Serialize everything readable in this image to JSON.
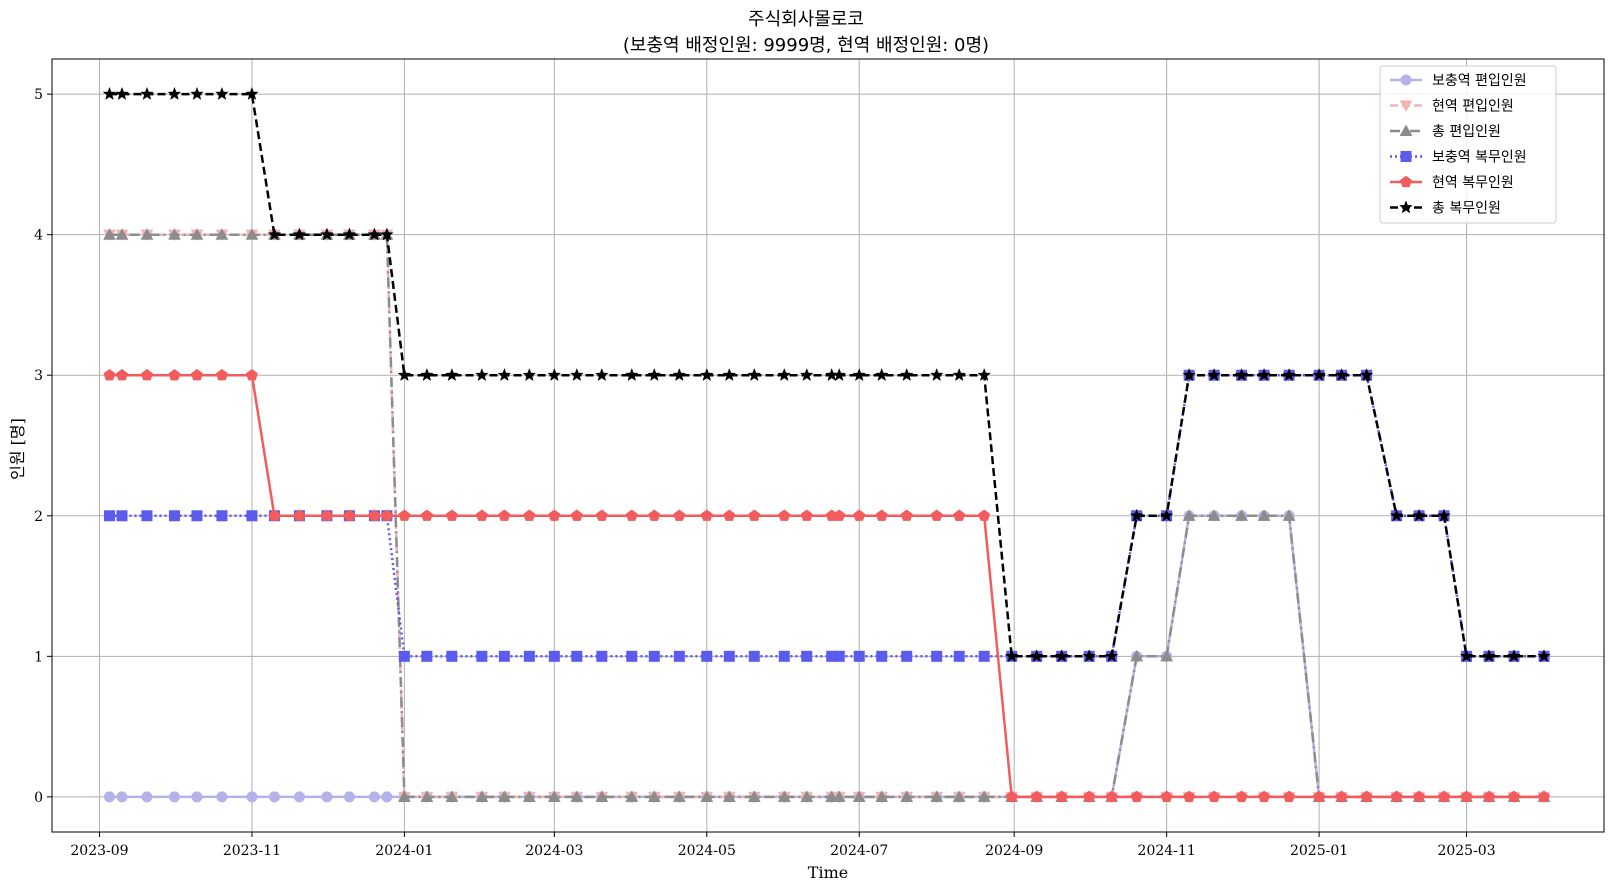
{
  "chart_data": {
    "type": "line",
    "title": "주식회사몰로코",
    "subtitle": "(보충역 배정인원: 9999명, 현역 배정인원: 0명)",
    "xlabel": "Time",
    "ylabel": "인원 [명]",
    "x_ticks": [
      "2023-09",
      "2023-11",
      "2024-01",
      "2024-03",
      "2024-05",
      "2024-07",
      "2024-09",
      "2024-11",
      "2025-01",
      "2025-03"
    ],
    "y_ticks": [
      "0",
      "1",
      "2",
      "3",
      "4",
      "5"
    ],
    "xlim": [
      "2023-08-13",
      "2025-04-25"
    ],
    "ylim": [
      -0.25,
      5.25
    ],
    "grid": true,
    "legend_position": "top-right",
    "x": [
      "2023-09-05",
      "2023-09-10",
      "2023-09-20",
      "2023-10-01",
      "2023-10-10",
      "2023-10-20",
      "2023-11-01",
      "2023-11-10",
      "2023-11-20",
      "2023-12-01",
      "2023-12-10",
      "2023-12-20",
      "2023-12-25",
      "2024-01-01",
      "2024-01-10",
      "2024-01-20",
      "2024-02-01",
      "2024-02-10",
      "2024-02-20",
      "2024-03-01",
      "2024-03-10",
      "2024-03-20",
      "2024-04-01",
      "2024-04-10",
      "2024-04-20",
      "2024-05-01",
      "2024-05-10",
      "2024-05-20",
      "2024-06-01",
      "2024-06-10",
      "2024-06-20",
      "2024-06-23",
      "2024-07-01",
      "2024-07-10",
      "2024-07-20",
      "2024-08-01",
      "2024-08-10",
      "2024-08-20",
      "2024-08-31",
      "2024-09-10",
      "2024-09-20",
      "2024-10-01",
      "2024-10-10",
      "2024-10-20",
      "2024-11-01",
      "2024-11-10",
      "2024-11-20",
      "2024-12-01",
      "2024-12-10",
      "2024-12-20",
      "2025-01-01",
      "2025-01-10",
      "2025-01-20",
      "2025-02-01",
      "2025-02-10",
      "2025-02-20",
      "2025-03-01",
      "2025-03-10",
      "2025-03-20",
      "2025-04-01"
    ],
    "series": [
      {
        "name": "보충역 편입인원",
        "color": "#b3b3ea",
        "dash": "",
        "marker": "circle",
        "values": [
          0,
          0,
          0,
          0,
          0,
          0,
          0,
          0,
          0,
          0,
          0,
          0,
          0,
          0,
          0,
          0,
          0,
          0,
          0,
          0,
          0,
          0,
          0,
          0,
          0,
          0,
          0,
          0,
          0,
          0,
          0,
          0,
          0,
          0,
          0,
          0,
          0,
          0,
          0,
          0,
          0,
          0,
          0,
          1,
          1,
          2,
          2,
          2,
          2,
          2,
          0,
          0,
          0,
          0,
          0,
          0,
          0,
          0,
          0,
          0
        ]
      },
      {
        "name": "현역 편입인원",
        "color": "#f2b3b3",
        "dash": "8,4",
        "marker": "triangle-down",
        "values": [
          4,
          4,
          4,
          4,
          4,
          4,
          4,
          4,
          4,
          4,
          4,
          4,
          4,
          0,
          0,
          0,
          0,
          0,
          0,
          0,
          0,
          0,
          0,
          0,
          0,
          0,
          0,
          0,
          0,
          0,
          0,
          0,
          0,
          0,
          0,
          0,
          0,
          0,
          0,
          0,
          0,
          0,
          0,
          0,
          0,
          0,
          0,
          0,
          0,
          0,
          0,
          0,
          0,
          0,
          0,
          0,
          0,
          0,
          0,
          0
        ]
      },
      {
        "name": "총 편입인원",
        "color": "#8c8c8c",
        "dash": "10,4,2,4",
        "marker": "triangle-up",
        "values": [
          4,
          4,
          4,
          4,
          4,
          4,
          4,
          4,
          4,
          4,
          4,
          4,
          4,
          0,
          0,
          0,
          0,
          0,
          0,
          0,
          0,
          0,
          0,
          0,
          0,
          0,
          0,
          0,
          0,
          0,
          0,
          0,
          0,
          0,
          0,
          0,
          0,
          0,
          0,
          0,
          0,
          0,
          0,
          1,
          1,
          2,
          2,
          2,
          2,
          2,
          0,
          0,
          0,
          0,
          0,
          0,
          0,
          0,
          0,
          0
        ]
      },
      {
        "name": "보충역 복무인원",
        "color": "#5b5bee",
        "dash": "2,3",
        "marker": "square",
        "values": [
          2,
          2,
          2,
          2,
          2,
          2,
          2,
          2,
          2,
          2,
          2,
          2,
          2,
          1,
          1,
          1,
          1,
          1,
          1,
          1,
          1,
          1,
          1,
          1,
          1,
          1,
          1,
          1,
          1,
          1,
          1,
          1,
          1,
          1,
          1,
          1,
          1,
          1,
          1,
          1,
          1,
          1,
          1,
          2,
          2,
          3,
          3,
          3,
          3,
          3,
          3,
          3,
          3,
          2,
          2,
          2,
          1,
          1,
          1,
          1
        ]
      },
      {
        "name": "현역 복무인원",
        "color": "#f25c5c",
        "dash": "",
        "marker": "pentagon",
        "values": [
          3,
          3,
          3,
          3,
          3,
          3,
          3,
          2,
          2,
          2,
          2,
          2,
          2,
          2,
          2,
          2,
          2,
          2,
          2,
          2,
          2,
          2,
          2,
          2,
          2,
          2,
          2,
          2,
          2,
          2,
          2,
          2,
          2,
          2,
          2,
          2,
          2,
          2,
          0,
          0,
          0,
          0,
          0,
          0,
          0,
          0,
          0,
          0,
          0,
          0,
          0,
          0,
          0,
          0,
          0,
          0,
          0,
          0,
          0,
          0
        ]
      },
      {
        "name": "총 복무인원",
        "color": "#000000",
        "dash": "8,4",
        "marker": "star",
        "values": [
          5,
          5,
          5,
          5,
          5,
          5,
          5,
          4,
          4,
          4,
          4,
          4,
          4,
          3,
          3,
          3,
          3,
          3,
          3,
          3,
          3,
          3,
          3,
          3,
          3,
          3,
          3,
          3,
          3,
          3,
          3,
          3,
          3,
          3,
          3,
          3,
          3,
          3,
          1,
          1,
          1,
          1,
          1,
          2,
          2,
          3,
          3,
          3,
          3,
          3,
          3,
          3,
          3,
          2,
          2,
          2,
          1,
          1,
          1,
          1
        ]
      }
    ]
  }
}
